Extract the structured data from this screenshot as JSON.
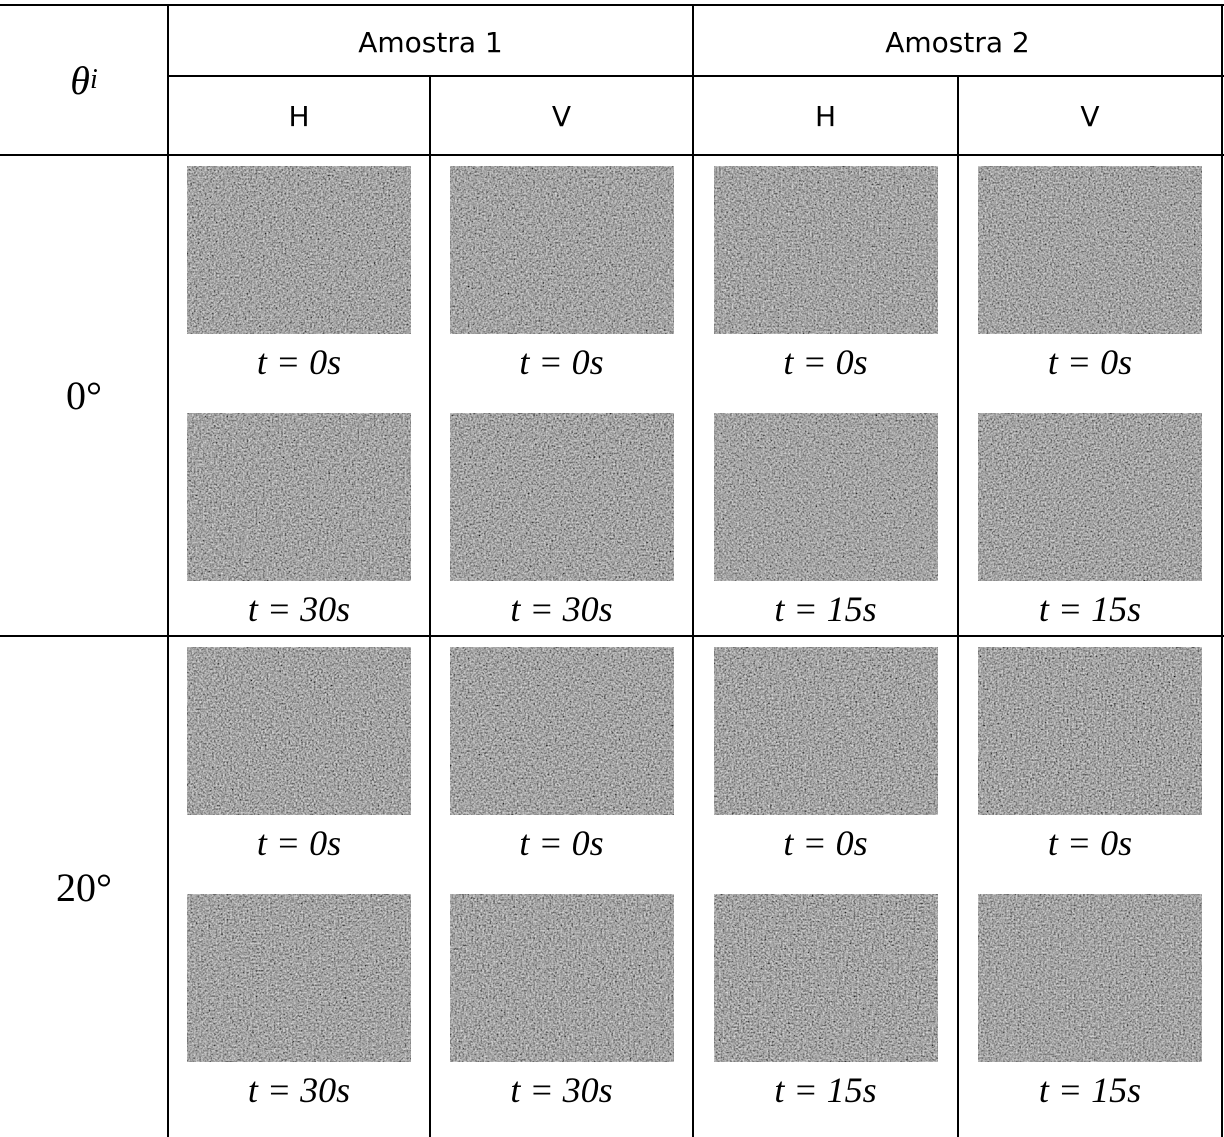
{
  "header": {
    "theta": "θ",
    "theta_sub": "i",
    "groups": [
      "Amostra 1",
      "Amostra 2"
    ],
    "columns": [
      "H",
      "V",
      "H",
      "V"
    ]
  },
  "rows": [
    {
      "angle": "0°",
      "cells": [
        [
          "t = 0s",
          "t = 30s"
        ],
        [
          "t = 0s",
          "t = 30s"
        ],
        [
          "t = 0s",
          "t = 15s"
        ],
        [
          "t = 0s",
          "t = 15s"
        ]
      ]
    },
    {
      "angle": "20°",
      "cells": [
        [
          "t = 0s",
          "t = 30s"
        ],
        [
          "t = 0s",
          "t = 30s"
        ],
        [
          "t = 0s",
          "t = 15s"
        ],
        [
          "t = 0s",
          "t = 15s"
        ]
      ]
    }
  ]
}
